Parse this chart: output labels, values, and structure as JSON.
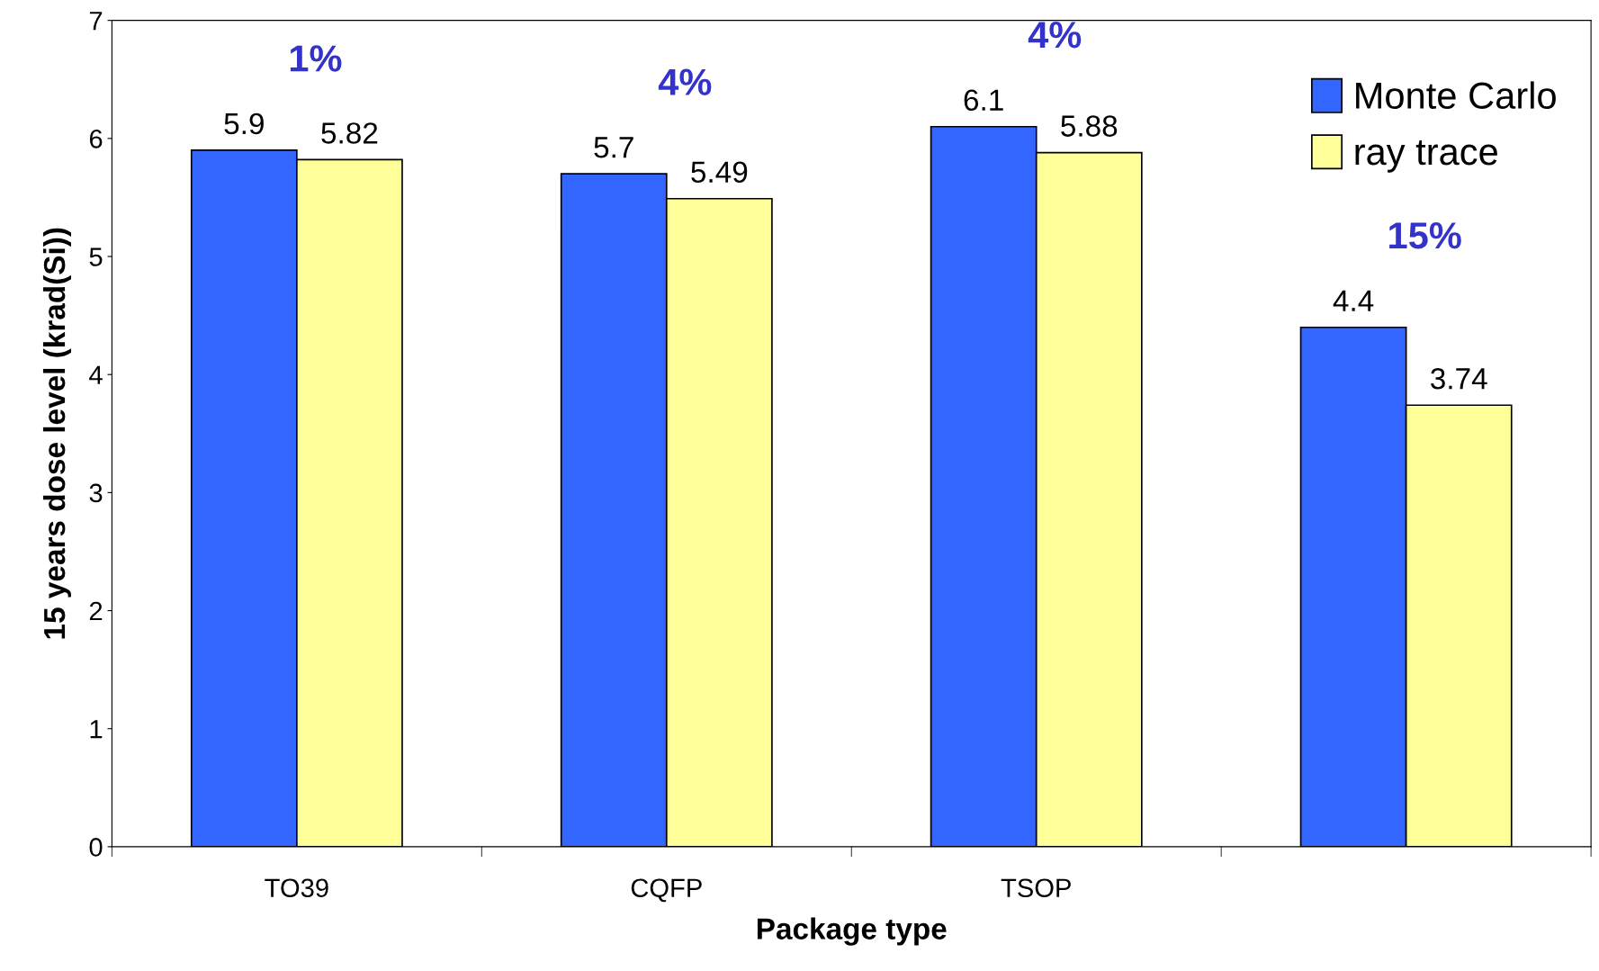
{
  "chart_data": {
    "type": "bar",
    "xlabel": "Package type",
    "ylabel": "15 years dose level (krad(Si))",
    "categories": [
      "TO39",
      "CQFP",
      "TSOP",
      null
    ],
    "series": [
      {
        "name": "Monte Carlo",
        "color": "#3366ff",
        "values": [
          5.9,
          5.7,
          6.1,
          4.4
        ]
      },
      {
        "name": "ray trace",
        "color": "#ffff99",
        "values": [
          5.82,
          5.49,
          5.88,
          3.74
        ]
      }
    ],
    "data_labels": true,
    "ylim": [
      0,
      7
    ],
    "yticks": [
      0,
      1,
      2,
      3,
      4,
      5,
      6,
      7
    ],
    "grid": false,
    "legend": "top right",
    "annotations": [
      "1%",
      "4%",
      "4%",
      "15%"
    ]
  }
}
